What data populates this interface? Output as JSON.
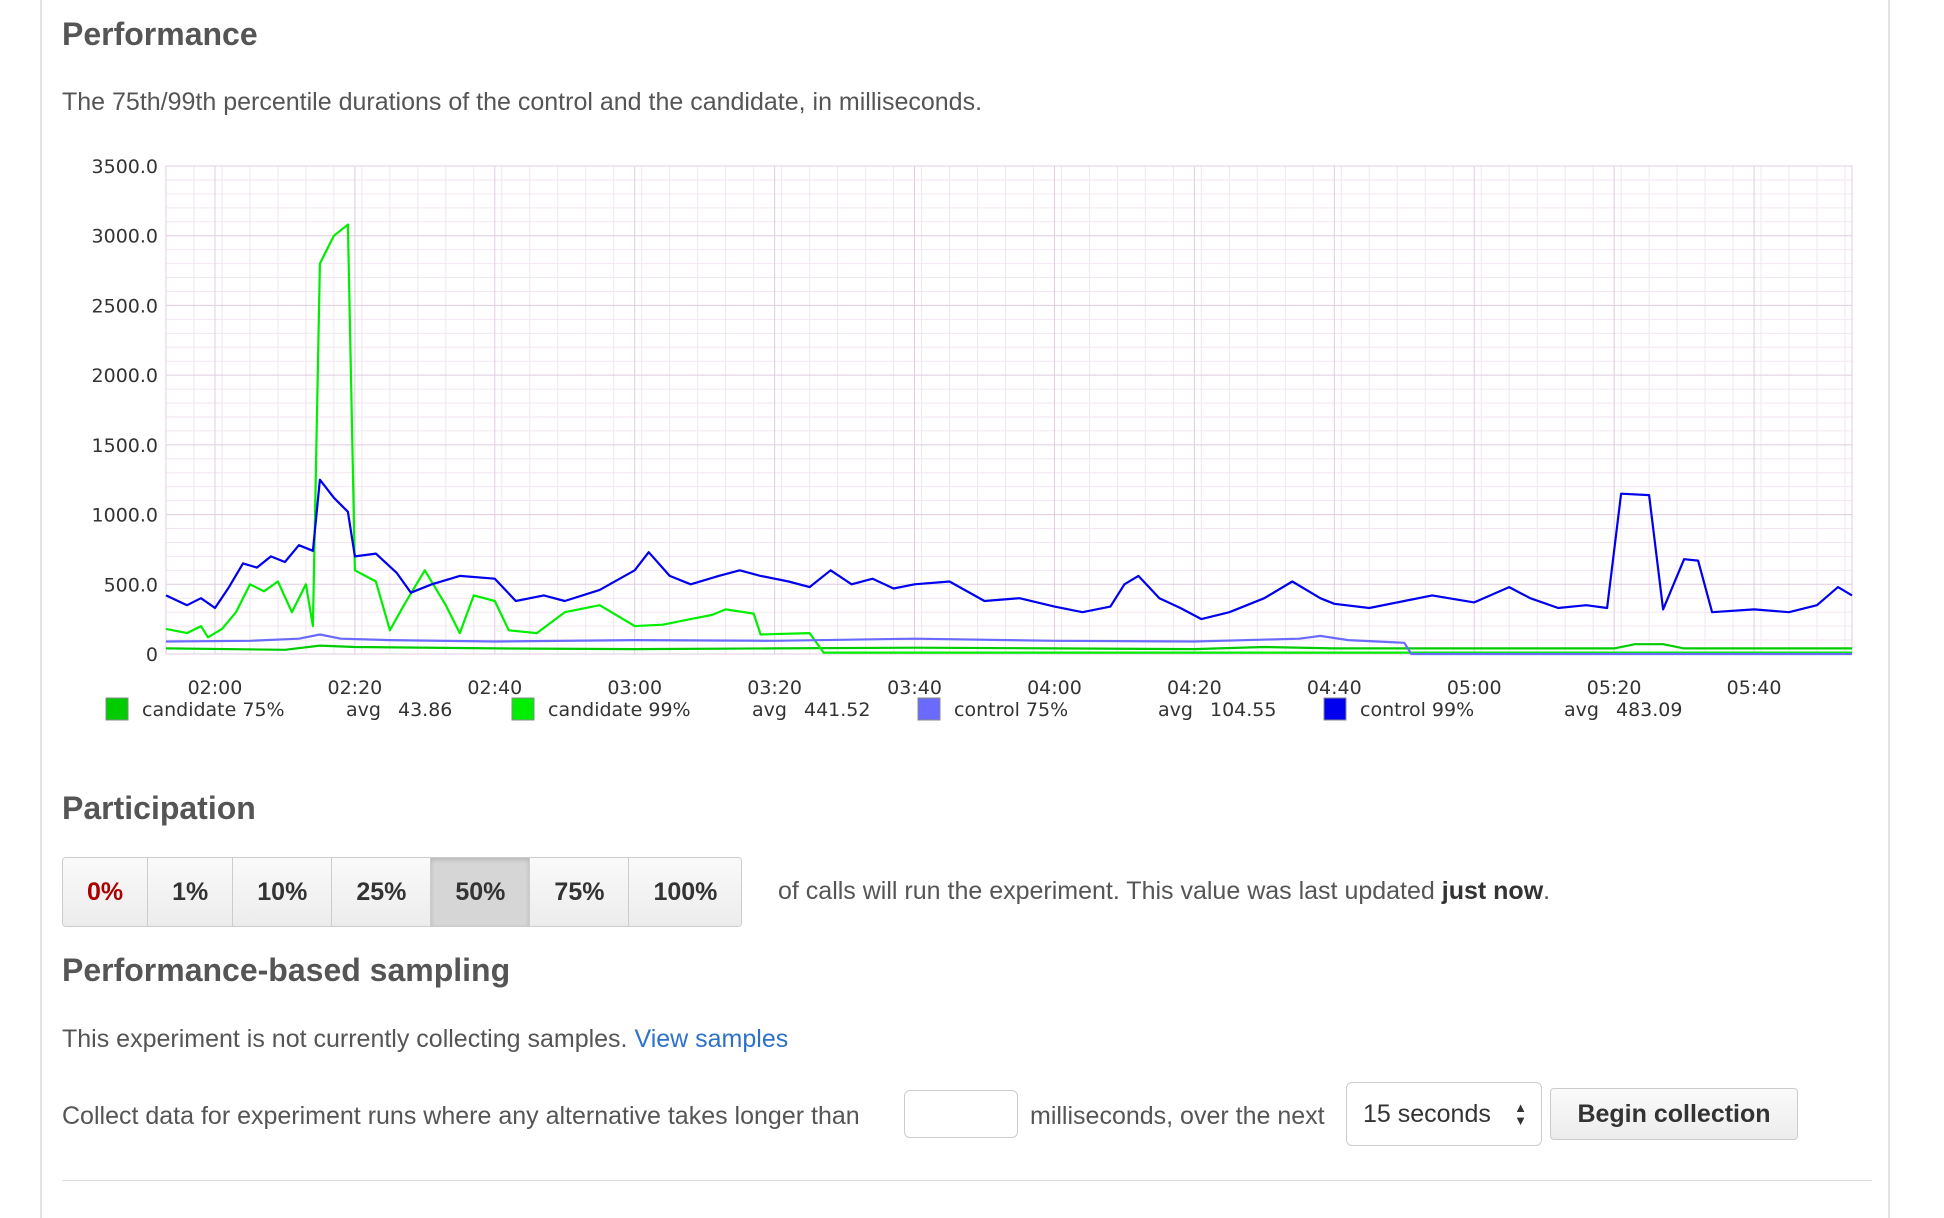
{
  "performance": {
    "heading": "Performance",
    "description": "The 75th/99th percentile durations of the control and the candidate, in milliseconds."
  },
  "chart_data": {
    "type": "line",
    "title": "",
    "xlabel": "",
    "ylabel": "",
    "ylim": [
      0,
      3500
    ],
    "yticks": [
      "0",
      "500.0",
      "1000.0",
      "1500.0",
      "2000.0",
      "2500.0",
      "3000.0",
      "3500.0"
    ],
    "xticks": [
      "02:00",
      "02:20",
      "02:40",
      "03:00",
      "03:20",
      "03:40",
      "04:00",
      "04:20",
      "04:40",
      "05:00",
      "05:20",
      "05:40"
    ],
    "xlim_minutes": [
      "01:53",
      "05:54"
    ],
    "grid": true,
    "legend_position": "bottom",
    "series": [
      {
        "name": "candidate 75%",
        "avg_label": "avg",
        "avg": "43.86",
        "color": "#00cc00",
        "points": [
          [
            "01:53",
            40
          ],
          [
            "02:10",
            30
          ],
          [
            "02:15",
            60
          ],
          [
            "02:20",
            50
          ],
          [
            "02:40",
            40
          ],
          [
            "03:00",
            35
          ],
          [
            "03:20",
            40
          ],
          [
            "03:40",
            45
          ],
          [
            "04:00",
            40
          ],
          [
            "04:20",
            35
          ],
          [
            "04:30",
            50
          ],
          [
            "04:40",
            40
          ],
          [
            "05:00",
            40
          ],
          [
            "05:20",
            40
          ],
          [
            "05:23",
            70
          ],
          [
            "05:27",
            70
          ],
          [
            "05:30",
            40
          ],
          [
            "05:54",
            40
          ]
        ]
      },
      {
        "name": "candidate 99%",
        "avg_label": "avg",
        "avg": "441.52",
        "color": "#00ee00",
        "points": [
          [
            "01:53",
            180
          ],
          [
            "01:56",
            150
          ],
          [
            "01:58",
            200
          ],
          [
            "01:59",
            120
          ],
          [
            "02:01",
            180
          ],
          [
            "02:03",
            300
          ],
          [
            "02:05",
            500
          ],
          [
            "02:07",
            450
          ],
          [
            "02:09",
            520
          ],
          [
            "02:11",
            300
          ],
          [
            "02:13",
            500
          ],
          [
            "02:14",
            200
          ],
          [
            "02:15",
            2800
          ],
          [
            "02:17",
            3000
          ],
          [
            "02:19",
            3080
          ],
          [
            "02:20",
            600
          ],
          [
            "02:23",
            520
          ],
          [
            "02:25",
            170
          ],
          [
            "02:27",
            350
          ],
          [
            "02:30",
            600
          ],
          [
            "02:33",
            350
          ],
          [
            "02:35",
            150
          ],
          [
            "02:37",
            420
          ],
          [
            "02:40",
            380
          ],
          [
            "02:42",
            170
          ],
          [
            "02:46",
            150
          ],
          [
            "02:50",
            300
          ],
          [
            "02:55",
            350
          ],
          [
            "03:00",
            200
          ],
          [
            "03:04",
            210
          ],
          [
            "03:08",
            250
          ],
          [
            "03:11",
            280
          ],
          [
            "03:13",
            320
          ],
          [
            "03:17",
            290
          ],
          [
            "03:18",
            140
          ],
          [
            "03:25",
            150
          ],
          [
            "03:27",
            10
          ],
          [
            "05:54",
            10
          ]
        ]
      },
      {
        "name": "control 75%",
        "avg_label": "avg",
        "avg": "104.55",
        "color": "#6a6aff",
        "points": [
          [
            "01:53",
            90
          ],
          [
            "02:05",
            95
          ],
          [
            "02:12",
            110
          ],
          [
            "02:15",
            140
          ],
          [
            "02:18",
            110
          ],
          [
            "02:25",
            100
          ],
          [
            "02:40",
            90
          ],
          [
            "03:00",
            100
          ],
          [
            "03:20",
            95
          ],
          [
            "03:40",
            110
          ],
          [
            "04:00",
            95
          ],
          [
            "04:20",
            90
          ],
          [
            "04:35",
            110
          ],
          [
            "04:38",
            130
          ],
          [
            "04:42",
            100
          ],
          [
            "04:50",
            80
          ],
          [
            "04:51",
            0
          ],
          [
            "05:54",
            0
          ]
        ]
      },
      {
        "name": "control 99%",
        "avg_label": "avg",
        "avg": "483.09",
        "color": "#0000ee",
        "points": [
          [
            "01:53",
            420
          ],
          [
            "01:56",
            350
          ],
          [
            "01:58",
            400
          ],
          [
            "02:00",
            330
          ],
          [
            "02:02",
            480
          ],
          [
            "02:04",
            650
          ],
          [
            "02:06",
            620
          ],
          [
            "02:08",
            700
          ],
          [
            "02:10",
            660
          ],
          [
            "02:12",
            780
          ],
          [
            "02:14",
            740
          ],
          [
            "02:15",
            1250
          ],
          [
            "02:17",
            1120
          ],
          [
            "02:19",
            1020
          ],
          [
            "02:20",
            700
          ],
          [
            "02:23",
            720
          ],
          [
            "02:26",
            580
          ],
          [
            "02:28",
            440
          ],
          [
            "02:31",
            500
          ],
          [
            "02:35",
            560
          ],
          [
            "02:40",
            540
          ],
          [
            "02:43",
            380
          ],
          [
            "02:47",
            420
          ],
          [
            "02:50",
            380
          ],
          [
            "02:55",
            460
          ],
          [
            "03:00",
            600
          ],
          [
            "03:02",
            730
          ],
          [
            "03:05",
            560
          ],
          [
            "03:08",
            500
          ],
          [
            "03:12",
            560
          ],
          [
            "03:15",
            600
          ],
          [
            "03:18",
            560
          ],
          [
            "03:22",
            520
          ],
          [
            "03:25",
            480
          ],
          [
            "03:28",
            600
          ],
          [
            "03:31",
            500
          ],
          [
            "03:34",
            540
          ],
          [
            "03:37",
            470
          ],
          [
            "03:40",
            500
          ],
          [
            "03:45",
            520
          ],
          [
            "03:50",
            380
          ],
          [
            "03:55",
            400
          ],
          [
            "04:00",
            340
          ],
          [
            "04:04",
            300
          ],
          [
            "04:08",
            340
          ],
          [
            "04:10",
            500
          ],
          [
            "04:12",
            560
          ],
          [
            "04:15",
            400
          ],
          [
            "04:18",
            330
          ],
          [
            "04:21",
            250
          ],
          [
            "04:25",
            300
          ],
          [
            "04:30",
            400
          ],
          [
            "04:34",
            520
          ],
          [
            "04:38",
            400
          ],
          [
            "04:40",
            360
          ],
          [
            "04:45",
            330
          ],
          [
            "04:50",
            380
          ],
          [
            "04:54",
            420
          ],
          [
            "05:00",
            370
          ],
          [
            "05:05",
            480
          ],
          [
            "05:08",
            400
          ],
          [
            "05:12",
            330
          ],
          [
            "05:16",
            350
          ],
          [
            "05:19",
            330
          ],
          [
            "05:21",
            1150
          ],
          [
            "05:25",
            1140
          ],
          [
            "05:27",
            320
          ],
          [
            "05:30",
            680
          ],
          [
            "05:32",
            670
          ],
          [
            "05:34",
            300
          ],
          [
            "05:40",
            320
          ],
          [
            "05:45",
            300
          ],
          [
            "05:49",
            350
          ],
          [
            "05:52",
            480
          ],
          [
            "05:54",
            420
          ]
        ]
      }
    ]
  },
  "participation": {
    "heading": "Participation",
    "options": [
      "0%",
      "1%",
      "10%",
      "25%",
      "50%",
      "75%",
      "100%"
    ],
    "selected": "50%",
    "text_before_bold": "of calls will run the experiment. This value was last updated ",
    "bold_text": "just now",
    "text_after_bold": "."
  },
  "sampling": {
    "heading": "Performance-based sampling",
    "status_text": "This experiment is not currently collecting samples.",
    "view_link": "View samples",
    "collect_text_before": "Collect data for experiment runs where any alternative takes longer than",
    "threshold_value": "",
    "collect_text_after": "milliseconds, over the next",
    "duration_selected": "15 seconds",
    "begin_button": "Begin collection"
  },
  "colors": {
    "link": "#2d72c8",
    "danger_option": "#aa0000"
  }
}
